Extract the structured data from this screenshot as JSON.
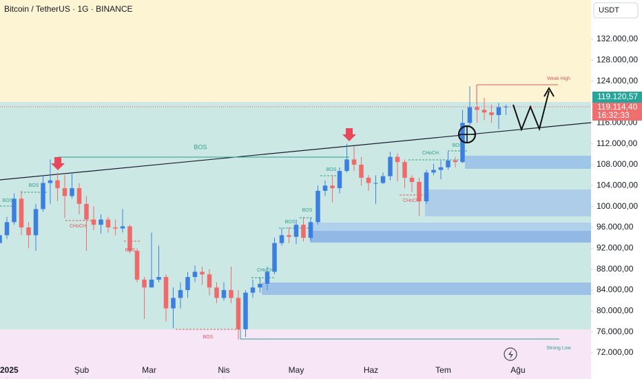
{
  "chart_data": {
    "type": "candlestick",
    "title": "Bitcoin / TetherUS · 1G · BINANCE",
    "currency": "USDT",
    "x": [
      -3,
      0,
      3,
      6,
      9,
      12,
      15,
      18,
      21,
      24,
      27,
      30,
      33,
      36,
      39,
      42,
      45,
      48,
      51,
      54,
      57,
      60,
      63,
      66,
      69,
      72,
      75,
      78,
      81,
      84,
      87,
      90,
      93,
      96,
      99,
      102,
      105,
      108,
      111,
      114,
      117,
      120,
      123,
      126,
      129,
      132,
      135,
      138,
      141,
      144,
      147,
      150,
      153,
      156,
      159,
      162,
      165,
      168,
      171,
      174,
      177,
      180,
      183,
      186,
      189,
      192,
      195,
      198,
      201,
      204,
      207
    ],
    "open": [
      93000,
      94500,
      97000,
      101500,
      96000,
      94500,
      99500,
      104500,
      105000,
      103500,
      102000,
      103500,
      100500,
      97500,
      96500,
      97500,
      96000,
      95800,
      96200,
      91500,
      86000,
      84500,
      86000,
      86500,
      80500,
      82500,
      84000,
      86500,
      87500,
      87000,
      84500,
      82500,
      84000,
      82500,
      76500,
      83500,
      84500,
      85200,
      87500,
      93000,
      94500,
      94200,
      96500,
      94000,
      97000,
      103000,
      104000,
      103500,
      106800,
      109000,
      108000,
      105500,
      104500,
      104500,
      105800,
      109500,
      108500,
      105500,
      104700,
      101000,
      106500,
      107000,
      107500,
      108800,
      108500,
      116000,
      119000,
      118500,
      118000,
      117500,
      119000
    ],
    "high": [
      95500,
      98000,
      102500,
      103000,
      97000,
      100500,
      106000,
      109000,
      106500,
      106000,
      106500,
      104500,
      102000,
      100000,
      98500,
      98000,
      97500,
      99500,
      96500,
      92000,
      86500,
      95000,
      92500,
      87000,
      84500,
      85500,
      87500,
      88700,
      88500,
      88000,
      85500,
      85500,
      88500,
      84000,
      84000,
      86000,
      86500,
      88500,
      94000,
      95800,
      96000,
      97500,
      98000,
      97800,
      104000,
      105000,
      106000,
      107500,
      112000,
      111500,
      109500,
      106000,
      106000,
      106500,
      110500,
      110200,
      109000,
      106000,
      105500,
      107000,
      108200,
      108800,
      110500,
      109500,
      118500,
      123000,
      120000,
      120800,
      119500,
      119800,
      119500
    ],
    "low": [
      92000,
      93800,
      96500,
      94500,
      92000,
      91500,
      99000,
      100500,
      101000,
      97800,
      101500,
      98500,
      91500,
      95500,
      94800,
      95000,
      94500,
      95000,
      91000,
      85500,
      78500,
      84500,
      85500,
      78000,
      76700,
      80500,
      82500,
      85500,
      85000,
      83000,
      81500,
      82000,
      81500,
      74500,
      75000,
      82500,
      83500,
      84000,
      87000,
      92500,
      93000,
      92800,
      93300,
      93500,
      96500,
      102000,
      100800,
      102500,
      106500,
      106800,
      104000,
      103000,
      100500,
      104300,
      105000,
      104800,
      103500,
      102800,
      98200,
      100500,
      106000,
      105200,
      107000,
      107500,
      108300,
      115500,
      116000,
      116500,
      116000,
      114800,
      117500
    ],
    "close": [
      94500,
      97000,
      101500,
      96000,
      94500,
      99500,
      104500,
      105000,
      103500,
      102000,
      103500,
      100500,
      97500,
      96500,
      97500,
      96000,
      95800,
      96200,
      91500,
      86000,
      84500,
      86000,
      86500,
      80500,
      82500,
      84000,
      86500,
      87500,
      87000,
      84500,
      82500,
      84000,
      82500,
      76500,
      83500,
      84500,
      85200,
      87500,
      93000,
      94500,
      94200,
      96500,
      94000,
      97000,
      103000,
      104000,
      103500,
      106800,
      109000,
      108000,
      105500,
      104500,
      104500,
      105800,
      109500,
      108500,
      105500,
      104700,
      101000,
      106500,
      107000,
      107500,
      108800,
      108500,
      116000,
      119000,
      118500,
      118000,
      117500,
      119000,
      119100
    ],
    "up_color": "#3d7fe0",
    "down_color": "#ef6a6a",
    "xlim": [
      -2.86,
      242.29
    ],
    "ylim": [
      66980,
      139520
    ],
    "xticks": [
      {
        "value": 0,
        "label": "2025"
      },
      {
        "value": 31,
        "label": "Şub"
      },
      {
        "value": 59,
        "label": "Mar"
      },
      {
        "value": 90,
        "label": "Nis"
      },
      {
        "value": 120,
        "label": "May"
      },
      {
        "value": 151,
        "label": "Haz"
      },
      {
        "value": 181,
        "label": "Tem"
      },
      {
        "value": 212,
        "label": "Ağu"
      }
    ],
    "yticks": [
      {
        "value": 72000,
        "label": "72.000,00"
      },
      {
        "value": 76000,
        "label": "76.000,00"
      },
      {
        "value": 80000,
        "label": "80.000,00"
      },
      {
        "value": 84000,
        "label": "84.000,00"
      },
      {
        "value": 88000,
        "label": "88.000,00"
      },
      {
        "value": 92000,
        "label": "92.000,00"
      },
      {
        "value": 96000,
        "label": "96.000,00"
      },
      {
        "value": 100000,
        "label": "100.000,00"
      },
      {
        "value": 104000,
        "label": "104.000,00"
      },
      {
        "value": 108000,
        "label": "108.000,00"
      },
      {
        "value": 112000,
        "label": "112.000,00"
      },
      {
        "value": 116000,
        "label": "116.000,00"
      },
      {
        "value": 120000,
        "label": "120.000,00"
      },
      {
        "value": 124000,
        "label": "124.000,00"
      },
      {
        "value": 128000,
        "label": "128.000,00"
      },
      {
        "value": 132000,
        "label": "132.000,00"
      }
    ],
    "price_labels": [
      "119.120,57",
      "119.114,40",
      "16:32:33"
    ],
    "annotations": [
      "BOS",
      "BOS",
      "BOS",
      "CHoCH",
      "BOS",
      "BOS",
      "CHoCH",
      "BOS",
      "BOS",
      "BOS",
      "CHoCH",
      "CHoCH",
      "BOS",
      "Weak High",
      "Strong Low"
    ]
  }
}
